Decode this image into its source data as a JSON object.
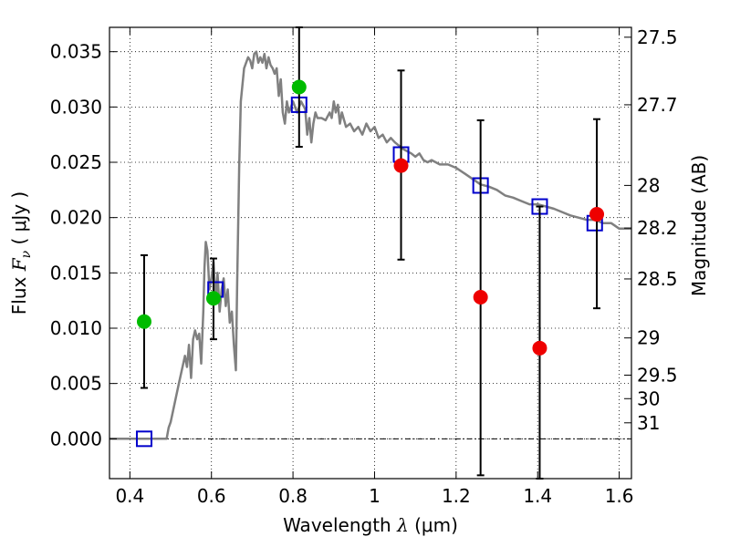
{
  "chart_data": {
    "type": "scatter",
    "xlabel": {
      "text": "Wavelength",
      "symbol": "λ",
      "unit": "(μm)"
    },
    "ylabel": {
      "text": "Flux",
      "symbol": "F",
      "subscript": "ν",
      "unit": "( μJy )"
    },
    "y2label": "Magnitude (AB)",
    "xlim": [
      0.35,
      1.63
    ],
    "ylim": [
      -0.0036,
      0.0372
    ],
    "grid": true,
    "x_ticks": [
      {
        "value": 0.4,
        "label": "0.4"
      },
      {
        "value": 0.6,
        "label": "0.6"
      },
      {
        "value": 0.8,
        "label": "0.8"
      },
      {
        "value": 1.0,
        "label": "1"
      },
      {
        "value": 1.2,
        "label": "1.2"
      },
      {
        "value": 1.4,
        "label": "1.4"
      },
      {
        "value": 1.6,
        "label": "1.6"
      }
    ],
    "y_ticks": [
      {
        "value": 0.0,
        "label": "0.000"
      },
      {
        "value": 0.005,
        "label": "0.005"
      },
      {
        "value": 0.01,
        "label": "0.010"
      },
      {
        "value": 0.015,
        "label": "0.015"
      },
      {
        "value": 0.02,
        "label": "0.020"
      },
      {
        "value": 0.025,
        "label": "0.025"
      },
      {
        "value": 0.03,
        "label": "0.030"
      },
      {
        "value": 0.035,
        "label": "0.035"
      }
    ],
    "y2_ticks": [
      {
        "mag": 27.5,
        "label": "27.5"
      },
      {
        "mag": 27.7,
        "label": "27.7"
      },
      {
        "mag": 28.0,
        "label": "28"
      },
      {
        "mag": 28.2,
        "label": "28.2"
      },
      {
        "mag": 28.5,
        "label": "28.5"
      },
      {
        "mag": 29.0,
        "label": "29"
      },
      {
        "mag": 29.5,
        "label": "29.5"
      },
      {
        "mag": 30.0,
        "label": "30"
      },
      {
        "mag": 31.0,
        "label": "31"
      }
    ],
    "series": [
      {
        "kind": "line",
        "color": "#808080",
        "points": [
          [
            0.35,
            0.0
          ],
          [
            0.49,
            0.0
          ],
          [
            0.495,
            0.001
          ],
          [
            0.5,
            0.0015
          ],
          [
            0.52,
            0.005
          ],
          [
            0.535,
            0.0075
          ],
          [
            0.54,
            0.0065
          ],
          [
            0.545,
            0.0085
          ],
          [
            0.55,
            0.0055
          ],
          [
            0.555,
            0.009
          ],
          [
            0.56,
            0.0098
          ],
          [
            0.565,
            0.009
          ],
          [
            0.57,
            0.0095
          ],
          [
            0.575,
            0.0068
          ],
          [
            0.58,
            0.0115
          ],
          [
            0.583,
            0.0155
          ],
          [
            0.586,
            0.0178
          ],
          [
            0.59,
            0.017
          ],
          [
            0.595,
            0.0135
          ],
          [
            0.6,
            0.0145
          ],
          [
            0.605,
            0.016
          ],
          [
            0.61,
            0.0125
          ],
          [
            0.615,
            0.015
          ],
          [
            0.62,
            0.0115
          ],
          [
            0.625,
            0.0135
          ],
          [
            0.63,
            0.0145
          ],
          [
            0.635,
            0.012
          ],
          [
            0.64,
            0.0135
          ],
          [
            0.645,
            0.0105
          ],
          [
            0.65,
            0.0115
          ],
          [
            0.655,
            0.0085
          ],
          [
            0.66,
            0.0062
          ],
          [
            0.663,
            0.014
          ],
          [
            0.668,
            0.0245
          ],
          [
            0.672,
            0.0305
          ],
          [
            0.68,
            0.0335
          ],
          [
            0.69,
            0.0345
          ],
          [
            0.695,
            0.0342
          ],
          [
            0.7,
            0.0335
          ],
          [
            0.705,
            0.0348
          ],
          [
            0.71,
            0.035
          ],
          [
            0.715,
            0.034
          ],
          [
            0.72,
            0.0345
          ],
          [
            0.725,
            0.034
          ],
          [
            0.73,
            0.0348
          ],
          [
            0.735,
            0.0335
          ],
          [
            0.74,
            0.0345
          ],
          [
            0.745,
            0.0338
          ],
          [
            0.75,
            0.0335
          ],
          [
            0.755,
            0.033
          ],
          [
            0.76,
            0.0335
          ],
          [
            0.765,
            0.031
          ],
          [
            0.77,
            0.0325
          ],
          [
            0.775,
            0.0295
          ],
          [
            0.78,
            0.0285
          ],
          [
            0.785,
            0.0305
          ],
          [
            0.79,
            0.0295
          ],
          [
            0.8,
            0.0305
          ],
          [
            0.81,
            0.0295
          ],
          [
            0.82,
            0.0305
          ],
          [
            0.83,
            0.0298
          ],
          [
            0.835,
            0.0275
          ],
          [
            0.84,
            0.029
          ],
          [
            0.845,
            0.0268
          ],
          [
            0.85,
            0.0285
          ],
          [
            0.855,
            0.0295
          ],
          [
            0.86,
            0.029
          ],
          [
            0.87,
            0.029
          ],
          [
            0.88,
            0.0288
          ],
          [
            0.89,
            0.0295
          ],
          [
            0.895,
            0.029
          ],
          [
            0.9,
            0.0305
          ],
          [
            0.905,
            0.0295
          ],
          [
            0.91,
            0.0302
          ],
          [
            0.915,
            0.0285
          ],
          [
            0.92,
            0.0295
          ],
          [
            0.93,
            0.0282
          ],
          [
            0.94,
            0.0285
          ],
          [
            0.95,
            0.0278
          ],
          [
            0.96,
            0.0282
          ],
          [
            0.97,
            0.0275
          ],
          [
            0.98,
            0.0285
          ],
          [
            0.99,
            0.0278
          ],
          [
            1.0,
            0.0282
          ],
          [
            1.01,
            0.0272
          ],
          [
            1.02,
            0.0275
          ],
          [
            1.03,
            0.0268
          ],
          [
            1.04,
            0.0272
          ],
          [
            1.05,
            0.0268
          ],
          [
            1.06,
            0.0265
          ],
          [
            1.07,
            0.0262
          ],
          [
            1.08,
            0.026
          ],
          [
            1.09,
            0.0258
          ],
          [
            1.1,
            0.0255
          ],
          [
            1.11,
            0.0258
          ],
          [
            1.12,
            0.0252
          ],
          [
            1.13,
            0.025
          ],
          [
            1.14,
            0.0252
          ],
          [
            1.16,
            0.0248
          ],
          [
            1.18,
            0.0248
          ],
          [
            1.2,
            0.0245
          ],
          [
            1.22,
            0.024
          ],
          [
            1.24,
            0.0235
          ],
          [
            1.26,
            0.023
          ],
          [
            1.28,
            0.0228
          ],
          [
            1.3,
            0.0225
          ],
          [
            1.32,
            0.022
          ],
          [
            1.34,
            0.0218
          ],
          [
            1.36,
            0.0215
          ],
          [
            1.38,
            0.0212
          ],
          [
            1.4,
            0.0212
          ],
          [
            1.42,
            0.021
          ],
          [
            1.44,
            0.0208
          ],
          [
            1.46,
            0.0205
          ],
          [
            1.48,
            0.0202
          ],
          [
            1.5,
            0.02
          ],
          [
            1.52,
            0.0198
          ],
          [
            1.54,
            0.0198
          ],
          [
            1.56,
            0.0195
          ],
          [
            1.58,
            0.0195
          ],
          [
            1.6,
            0.019
          ],
          [
            1.63,
            0.019
          ]
        ]
      },
      {
        "kind": "open-square",
        "color": "#0000cc",
        "points": [
          [
            0.435,
            0.0
          ],
          [
            0.61,
            0.0135
          ],
          [
            0.815,
            0.0302
          ],
          [
            1.065,
            0.0257
          ],
          [
            1.26,
            0.0229
          ],
          [
            1.405,
            0.021
          ],
          [
            1.54,
            0.0195
          ]
        ]
      },
      {
        "kind": "filled-circle-errorbar",
        "color": "#00bb00",
        "points": [
          {
            "x": 0.435,
            "y": 0.0106,
            "ylo": 0.0046,
            "yhi": 0.0166
          },
          {
            "x": 0.605,
            "y": 0.0127,
            "ylo": 0.009,
            "yhi": 0.0163
          },
          {
            "x": 0.815,
            "y": 0.0318,
            "ylo": 0.0264,
            "yhi": 0.0372
          }
        ]
      },
      {
        "kind": "filled-circle-errorbar",
        "color": "#ee0000",
        "points": [
          {
            "x": 1.065,
            "y": 0.0247,
            "ylo": 0.0162,
            "yhi": 0.0333
          },
          {
            "x": 1.26,
            "y": 0.0128,
            "ylo": -0.0033,
            "yhi": 0.0288
          },
          {
            "x": 1.405,
            "y": 0.0082,
            "ylo": -0.0036,
            "yhi": 0.021
          },
          {
            "x": 1.545,
            "y": 0.0203,
            "ylo": 0.0118,
            "yhi": 0.0289
          }
        ]
      }
    ]
  }
}
